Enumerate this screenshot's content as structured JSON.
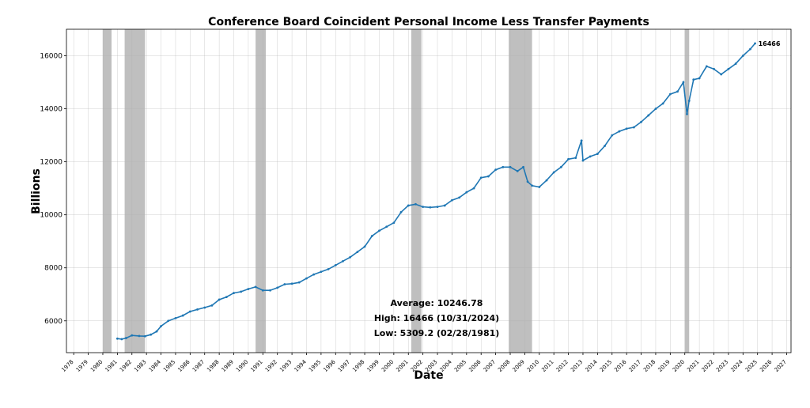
{
  "chart_data": {
    "type": "line",
    "title": "Conference Board Coincident Personal Income Less Transfer Payments",
    "xlabel": "Date",
    "ylabel": "Billions",
    "xlim": [
      1977.5,
      2027.3
    ],
    "ylim": [
      4800,
      17000
    ],
    "yticks": [
      6000,
      8000,
      10000,
      12000,
      14000,
      16000
    ],
    "xtick_labels": [
      "1978",
      "1979",
      "1980",
      "1981",
      "1982",
      "1983",
      "1984",
      "1985",
      "1986",
      "1987",
      "1988",
      "1989",
      "1990",
      "1991",
      "1992",
      "1993",
      "1994",
      "1995",
      "1996",
      "1997",
      "1998",
      "1999",
      "2000",
      "2001",
      "2002",
      "2003",
      "2004",
      "2005",
      "2006",
      "2007",
      "2008",
      "2009",
      "2010",
      "2011",
      "2012",
      "2013",
      "2014",
      "2015",
      "2016",
      "2017",
      "2018",
      "2019",
      "2020",
      "2021",
      "2022",
      "2023",
      "2024",
      "2025",
      "2026",
      "2027"
    ],
    "grid": true,
    "recessions": [
      {
        "start": 1980.0,
        "end": 1980.6
      },
      {
        "start": 1981.5,
        "end": 1982.9
      },
      {
        "start": 1990.5,
        "end": 1991.2
      },
      {
        "start": 2001.2,
        "end": 2001.9
      },
      {
        "start": 2007.9,
        "end": 2009.5
      },
      {
        "start": 2020.0,
        "end": 2020.3
      }
    ],
    "series": [
      {
        "color": "#1f77b4",
        "x": [
          1981.0,
          1981.3,
          1981.6,
          1982.0,
          1982.5,
          1982.9,
          1983.3,
          1983.7,
          1984.0,
          1984.5,
          1985.0,
          1985.5,
          1986.0,
          1986.5,
          1987.0,
          1987.5,
          1988.0,
          1988.5,
          1989.0,
          1989.5,
          1990.0,
          1990.5,
          1991.0,
          1991.5,
          1992.0,
          1992.5,
          1993.0,
          1993.5,
          1994.0,
          1994.5,
          1995.0,
          1995.5,
          1996.0,
          1996.5,
          1997.0,
          1997.5,
          1998.0,
          1998.5,
          1999.0,
          1999.5,
          2000.0,
          2000.5,
          2001.0,
          2001.5,
          2002.0,
          2002.5,
          2003.0,
          2003.5,
          2004.0,
          2004.5,
          2005.0,
          2005.5,
          2006.0,
          2006.5,
          2007.0,
          2007.5,
          2008.0,
          2008.5,
          2008.9,
          2009.2,
          2009.5,
          2010.0,
          2010.5,
          2011.0,
          2011.5,
          2012.0,
          2012.5,
          2012.9,
          2013.0,
          2013.5,
          2014.0,
          2014.5,
          2015.0,
          2015.5,
          2016.0,
          2016.5,
          2017.0,
          2017.5,
          2018.0,
          2018.5,
          2019.0,
          2019.5,
          2019.9,
          2020.15,
          2020.3,
          2020.6,
          2021.0,
          2021.5,
          2022.0,
          2022.5,
          2023.0,
          2023.5,
          2024.0,
          2024.5,
          2024.83
        ],
        "y": [
          5330,
          5309,
          5350,
          5450,
          5430,
          5420,
          5480,
          5600,
          5800,
          6000,
          6100,
          6200,
          6350,
          6430,
          6500,
          6580,
          6800,
          6900,
          7050,
          7100,
          7200,
          7280,
          7150,
          7150,
          7250,
          7380,
          7400,
          7450,
          7600,
          7750,
          7850,
          7950,
          8100,
          8250,
          8400,
          8600,
          8800,
          9200,
          9400,
          9550,
          9700,
          10100,
          10350,
          10400,
          10300,
          10280,
          10300,
          10350,
          10550,
          10650,
          10850,
          11000,
          11400,
          11450,
          11700,
          11800,
          11800,
          11650,
          11800,
          11250,
          11100,
          11050,
          11300,
          11600,
          11800,
          12100,
          12150,
          12800,
          12050,
          12200,
          12300,
          12600,
          13000,
          13150,
          13250,
          13300,
          13500,
          13750,
          14000,
          14200,
          14550,
          14650,
          15000,
          13800,
          14300,
          15100,
          15150,
          15600,
          15500,
          15300,
          15500,
          15700,
          16000,
          16250,
          16466
        ]
      }
    ],
    "annotation": {
      "text": "16466",
      "x": 2024.83,
      "y": 16466
    },
    "stats": {
      "average": "Average: 10246.78",
      "high": "High: 16466 (10/31/2024)",
      "low": "Low: 5309.2 (02/28/1981)"
    }
  }
}
